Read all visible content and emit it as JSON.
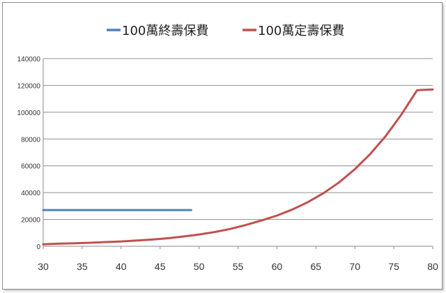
{
  "chart_data": {
    "type": "line",
    "legend_position": "top",
    "grid": true,
    "ylim": [
      0,
      140000
    ],
    "xlim": [
      30,
      80
    ],
    "x_ticks": [
      "30",
      "35",
      "40",
      "45",
      "50",
      "55",
      "60",
      "65",
      "70",
      "75",
      "80"
    ],
    "y_ticks": [
      "0",
      "20000",
      "40000",
      "60000",
      "80000",
      "100000",
      "120000",
      "140000"
    ],
    "series": [
      {
        "name": "100萬終壽保費",
        "color": "#4f81bd",
        "x": [
          30,
          49
        ],
        "y": [
          27000,
          27000
        ]
      },
      {
        "name": "100萬定壽保費",
        "color": "#c0504d",
        "x": [
          30,
          32,
          34,
          36,
          38,
          40,
          42,
          44,
          46,
          48,
          50,
          52,
          54,
          56,
          58,
          60,
          62,
          64,
          66,
          68,
          70,
          72,
          74,
          76,
          78,
          80
        ],
        "y": [
          1500,
          1900,
          2200,
          2600,
          3100,
          3600,
          4300,
          5000,
          6000,
          7300,
          8800,
          10600,
          12900,
          15800,
          19200,
          22900,
          27500,
          33000,
          39700,
          47700,
          57500,
          69000,
          82500,
          98500,
          116500,
          117000
        ]
      }
    ]
  }
}
